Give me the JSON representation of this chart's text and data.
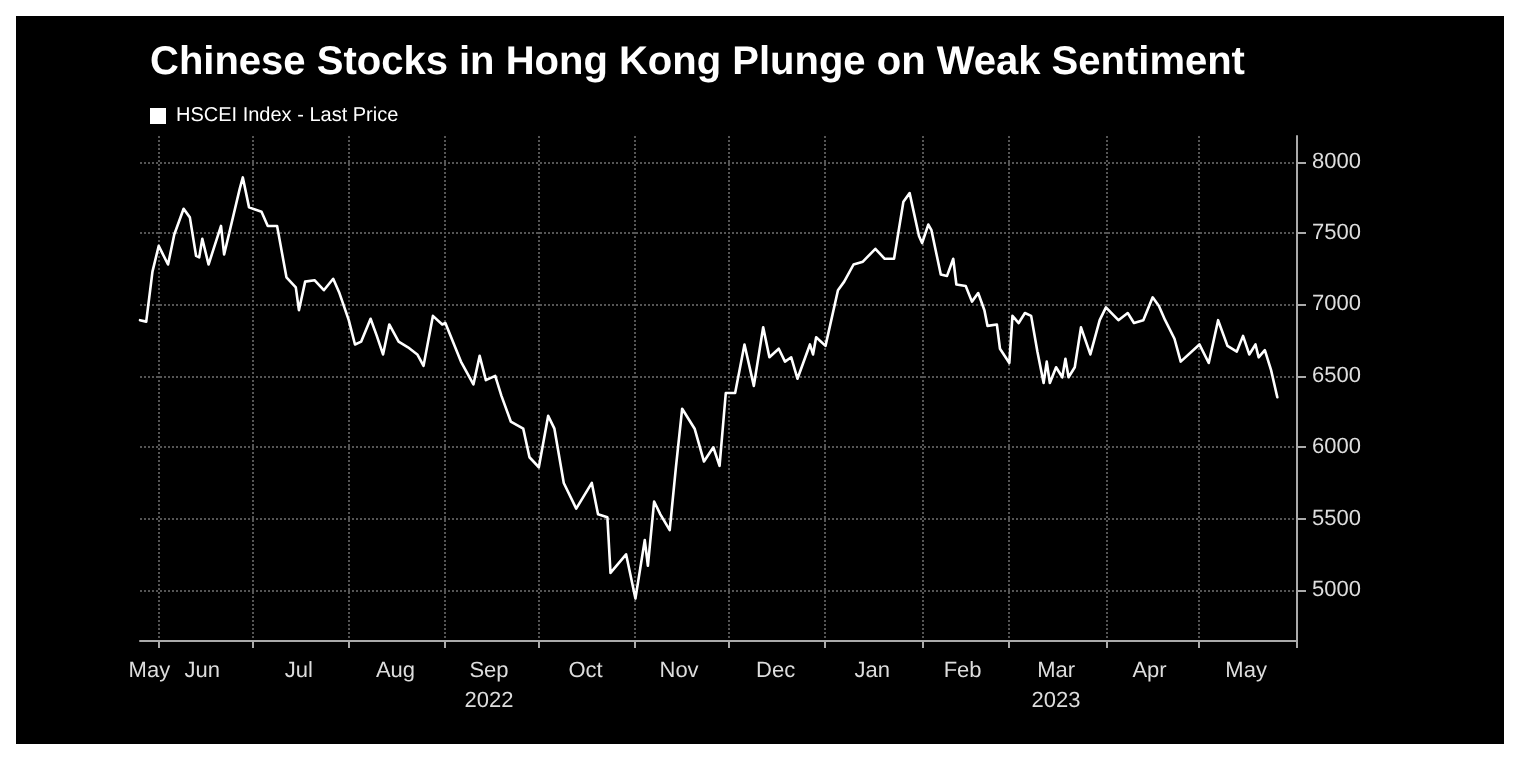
{
  "chart_data": {
    "type": "line",
    "title": "Chinese Stocks in Hong Kong Plunge on Weak Sentiment",
    "x": [
      "2022-05-26",
      "2022-05-28",
      "2022-05-30",
      "2022-06-01",
      "2022-06-04",
      "2022-06-06",
      "2022-06-09",
      "2022-06-11",
      "2022-06-13",
      "2022-06-14",
      "2022-06-15",
      "2022-06-17",
      "2022-06-21",
      "2022-06-22",
      "2022-06-27",
      "2022-06-28",
      "2022-06-30",
      "2022-07-04",
      "2022-07-06",
      "2022-07-09",
      "2022-07-12",
      "2022-07-15",
      "2022-07-16",
      "2022-07-18",
      "2022-07-21",
      "2022-07-24",
      "2022-07-27",
      "2022-07-29",
      "2022-08-01",
      "2022-08-03",
      "2022-08-05",
      "2022-08-08",
      "2022-08-10",
      "2022-08-12",
      "2022-08-14",
      "2022-08-17",
      "2022-08-20",
      "2022-08-23",
      "2022-08-25",
      "2022-08-28",
      "2022-08-31",
      "2022-09-01",
      "2022-09-06",
      "2022-09-10",
      "2022-09-12",
      "2022-09-14",
      "2022-09-17",
      "2022-09-19",
      "2022-09-22",
      "2022-09-26",
      "2022-09-28",
      "2022-10-01",
      "2022-10-04",
      "2022-10-06",
      "2022-10-09",
      "2022-10-13",
      "2022-10-18",
      "2022-10-20",
      "2022-10-23",
      "2022-10-24",
      "2022-10-29",
      "2022-11-01",
      "2022-11-04",
      "2022-11-05",
      "2022-11-07",
      "2022-11-09",
      "2022-11-12",
      "2022-11-14",
      "2022-11-16",
      "2022-11-20",
      "2022-11-23",
      "2022-11-26",
      "2022-11-28",
      "2022-11-30",
      "2022-12-03",
      "2022-12-06",
      "2022-12-09",
      "2022-12-12",
      "2022-12-14",
      "2022-12-17",
      "2022-12-19",
      "2022-12-21",
      "2022-12-23",
      "2022-12-27",
      "2022-12-28",
      "2022-12-29",
      "2023-01-01",
      "2023-01-05",
      "2023-01-07",
      "2023-01-10",
      "2023-01-13",
      "2023-01-17",
      "2023-01-20",
      "2023-01-23",
      "2023-01-26",
      "2023-01-28",
      "2023-01-31",
      "2023-02-01",
      "2023-02-03",
      "2023-02-04",
      "2023-02-07",
      "2023-02-09",
      "2023-02-11",
      "2023-02-12",
      "2023-02-15",
      "2023-02-17",
      "2023-02-19",
      "2023-02-21",
      "2023-02-22",
      "2023-02-25",
      "2023-02-26",
      "2023-03-01",
      "2023-03-02",
      "2023-03-04",
      "2023-03-06",
      "2023-03-08",
      "2023-03-10",
      "2023-03-12",
      "2023-03-13",
      "2023-03-14",
      "2023-03-16",
      "2023-03-18",
      "2023-03-19",
      "2023-03-20",
      "2023-03-22",
      "2023-03-24",
      "2023-03-27",
      "2023-03-30",
      "2023-04-01",
      "2023-04-05",
      "2023-04-08",
      "2023-04-10",
      "2023-04-13",
      "2023-04-16",
      "2023-04-18",
      "2023-04-20",
      "2023-04-23",
      "2023-04-25",
      "2023-05-01",
      "2023-05-04",
      "2023-05-07",
      "2023-05-10",
      "2023-05-13",
      "2023-05-15",
      "2023-05-17",
      "2023-05-19",
      "2023-05-20",
      "2023-05-22",
      "2023-05-24",
      "2023-05-26"
    ],
    "series": [
      {
        "name": "HSCEI Index - Last Price",
        "color": "#ffffff",
        "values": [
          6890,
          6880,
          7230,
          7410,
          7280,
          7490,
          7670,
          7610,
          7340,
          7330,
          7460,
          7280,
          7550,
          7350,
          7810,
          7890,
          7680,
          7650,
          7550,
          7550,
          7190,
          7120,
          6960,
          7160,
          7170,
          7100,
          7180,
          7080,
          6890,
          6720,
          6740,
          6900,
          6780,
          6650,
          6860,
          6740,
          6700,
          6650,
          6570,
          6920,
          6860,
          6870,
          6600,
          6440,
          6640,
          6470,
          6500,
          6360,
          6180,
          6130,
          5930,
          5860,
          6220,
          6130,
          5750,
          5570,
          5750,
          5530,
          5510,
          5120,
          5250,
          4940,
          5350,
          5170,
          5620,
          5530,
          5420,
          5860,
          6270,
          6130,
          5900,
          6000,
          5870,
          6380,
          6380,
          6720,
          6430,
          6840,
          6630,
          6690,
          6600,
          6630,
          6480,
          6720,
          6650,
          6770,
          6710,
          7100,
          7160,
          7280,
          7300,
          7390,
          7320,
          7320,
          7720,
          7780,
          7480,
          7430,
          7560,
          7520,
          7210,
          7200,
          7320,
          7140,
          7130,
          7020,
          7080,
          6960,
          6850,
          6860,
          6690,
          6590,
          6920,
          6870,
          6940,
          6920,
          6670,
          6450,
          6600,
          6450,
          6560,
          6490,
          6620,
          6490,
          6560,
          6840,
          6650,
          6890,
          6980,
          6890,
          6940,
          6870,
          6890,
          7050,
          6990,
          6890,
          6760,
          6600,
          6720,
          6590,
          6890,
          6710,
          6670,
          6780,
          6650,
          6720,
          6630,
          6680,
          6540,
          6350
        ]
      }
    ],
    "xlim": [
      "2022-05-26",
      "2023-06-01"
    ],
    "xticks": [
      {
        "value": "2022-05-29",
        "label": "May"
      },
      {
        "value": "2022-06-01",
        "label": null
      },
      {
        "value": "2022-06-15",
        "label": "Jun"
      },
      {
        "value": "2022-07-01",
        "label": null
      },
      {
        "value": "2022-07-16",
        "label": "Jul"
      },
      {
        "value": "2022-08-01",
        "label": null
      },
      {
        "value": "2022-08-16",
        "label": "Aug"
      },
      {
        "value": "2022-09-01",
        "label": null
      },
      {
        "value": "2022-09-15",
        "label": "Sep\n2022"
      },
      {
        "value": "2022-10-01",
        "label": null
      },
      {
        "value": "2022-10-16",
        "label": "Oct"
      },
      {
        "value": "2022-11-01",
        "label": null
      },
      {
        "value": "2022-11-15",
        "label": "Nov"
      },
      {
        "value": "2022-12-01",
        "label": null
      },
      {
        "value": "2022-12-16",
        "label": "Dec"
      },
      {
        "value": "2023-01-01",
        "label": null
      },
      {
        "value": "2023-01-16",
        "label": "Jan"
      },
      {
        "value": "2023-02-01",
        "label": null
      },
      {
        "value": "2023-02-14",
        "label": "Feb"
      },
      {
        "value": "2023-03-01",
        "label": null
      },
      {
        "value": "2023-03-16",
        "label": "Mar\n2023"
      },
      {
        "value": "2023-04-01",
        "label": null
      },
      {
        "value": "2023-04-15",
        "label": "Apr"
      },
      {
        "value": "2023-05-01",
        "label": null
      },
      {
        "value": "2023-05-16",
        "label": "May"
      },
      {
        "value": "2023-06-01",
        "label": null
      }
    ],
    "ylim": [
      4650,
      8180
    ],
    "yticks": [
      5000,
      5500,
      6000,
      6500,
      7000,
      7500,
      8000
    ],
    "grid": true,
    "legend": "top left",
    "marker": "none",
    "line_style": "solid"
  }
}
